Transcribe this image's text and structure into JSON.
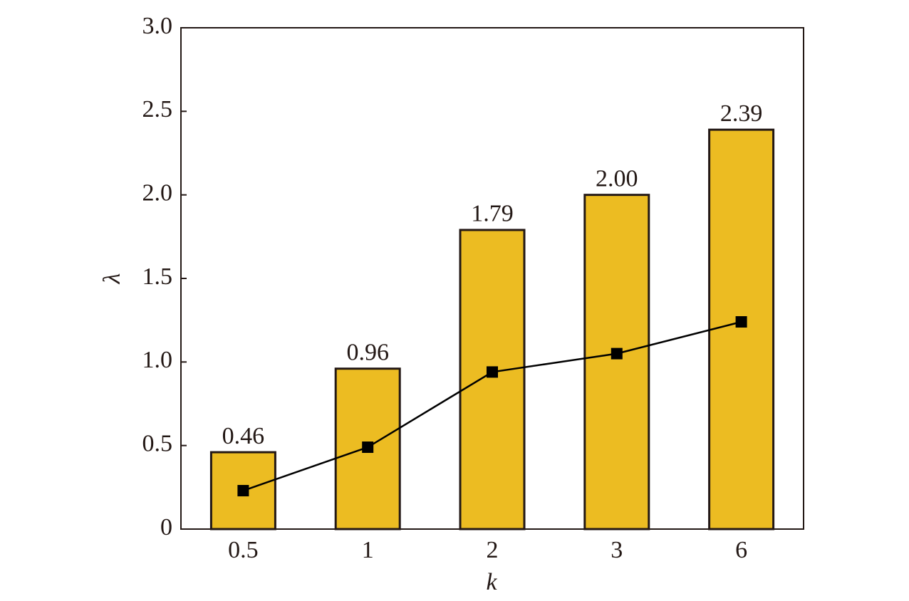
{
  "chart_data": {
    "type": "bar",
    "categories": [
      "0.5",
      "1",
      "2",
      "3",
      "6"
    ],
    "series": [
      {
        "type": "bar",
        "color": "#ecbc22",
        "values": [
          0.46,
          0.96,
          1.79,
          2.0,
          2.39
        ],
        "value_labels": [
          "0.46",
          "0.96",
          "1.79",
          "2.00",
          "2.39"
        ]
      },
      {
        "type": "line",
        "color": "#000000",
        "values": [
          0.23,
          0.49,
          0.94,
          1.05,
          1.24
        ]
      }
    ],
    "x_label": "k",
    "y_label": "λ",
    "ylim": [
      0,
      3
    ],
    "yticks": [
      0,
      0.5,
      {
        "value": 1,
        "label": "1.0"
      },
      1.5,
      {
        "value": 2,
        "label": "2.0"
      },
      2.5,
      {
        "value": 3,
        "label": "3.0"
      }
    ],
    "grid": false
  }
}
